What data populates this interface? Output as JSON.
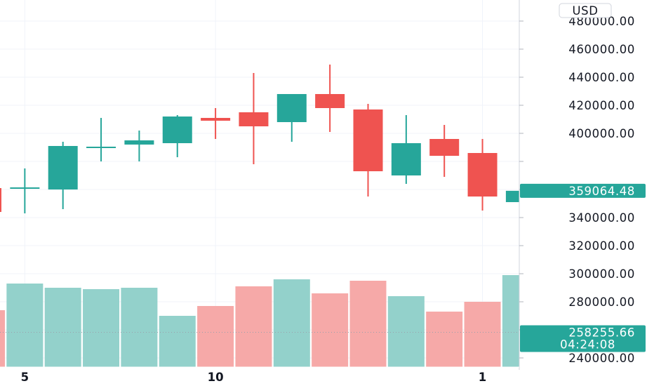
{
  "chart_data": {
    "type": "candlestick",
    "currency": "USD",
    "colors": {
      "up": "#26a69a",
      "down": "#ef5350",
      "up_volume": "#93d1cb",
      "down_volume": "#f6a9a8",
      "grid": "#f0f3fa",
      "axis_text": "#131722"
    },
    "y_ticks": [
      480000,
      460000,
      440000,
      420000,
      400000,
      380000,
      360000,
      340000,
      320000,
      300000,
      280000,
      260000,
      240000
    ],
    "y_tick_labels": [
      "480000.00",
      "460000.00",
      "440000.00",
      "420000.00",
      "400000.00",
      "",
      "",
      "340000.00",
      "320000.00",
      "300000.00",
      "280000.00",
      "",
      "240000.00"
    ],
    "ylim": [
      236000,
      488000
    ],
    "x_ticks": [
      {
        "index": 1,
        "label": "5"
      },
      {
        "index": 6,
        "label": "10"
      },
      {
        "index": 13,
        "label": "1"
      }
    ],
    "candles": [
      {
        "open": 361000,
        "high": 365000,
        "low": 342000,
        "close": 344000
      },
      {
        "open": 361000,
        "high": 375000,
        "low": 343000,
        "close": 361000
      },
      {
        "open": 360000,
        "high": 394000,
        "low": 346000,
        "close": 391000
      },
      {
        "open": 390000,
        "high": 411000,
        "low": 380000,
        "close": 390000
      },
      {
        "open": 392000,
        "high": 402000,
        "low": 380000,
        "close": 395000
      },
      {
        "open": 393000,
        "high": 413000,
        "low": 383000,
        "close": 412000
      },
      {
        "open": 411000,
        "high": 418000,
        "low": 396000,
        "close": 409000
      },
      {
        "open": 415000,
        "high": 443000,
        "low": 378000,
        "close": 405000
      },
      {
        "open": 408000,
        "high": 428000,
        "low": 394000,
        "close": 428000
      },
      {
        "open": 428000,
        "high": 449000,
        "low": 401000,
        "close": 418000
      },
      {
        "open": 417000,
        "high": 421000,
        "low": 355000,
        "close": 373000
      },
      {
        "open": 370000,
        "high": 413000,
        "low": 364000,
        "close": 393000
      },
      {
        "open": 396000,
        "high": 406000,
        "low": 369000,
        "close": 384000
      },
      {
        "open": 386000,
        "high": 396000,
        "low": 345000,
        "close": 355000
      },
      {
        "open": 351000,
        "high": 360000,
        "low": 350000,
        "close": 359064.48
      }
    ],
    "volume_tops": [
      274000,
      293000,
      290000,
      289000,
      290000,
      270000,
      277000,
      291000,
      296000,
      286000,
      295000,
      284000,
      273000,
      280000,
      299000
    ],
    "last_price": {
      "value": 359064.48,
      "label": "359064.48"
    },
    "secondary_label": {
      "value": 258255.66,
      "label": "258255.66",
      "countdown": "04:24:08"
    }
  }
}
